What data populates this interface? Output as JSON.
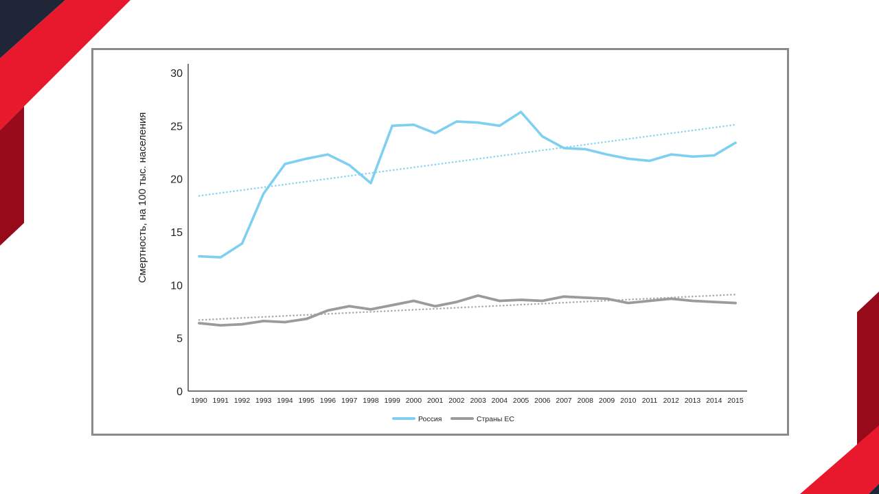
{
  "colors": {
    "navy": "#1f2638",
    "red": "#e8192c",
    "dark_red": "#960a1a",
    "russia": "#7fd0f0",
    "eu": "#9b9b9b"
  },
  "chart_data": {
    "type": "line",
    "ylabel": "Смертность, на 100 тыс. населения",
    "xlabel": "",
    "ylim": [
      0,
      30
    ],
    "yticks": [
      0,
      5,
      10,
      15,
      20,
      25,
      30
    ],
    "categories": [
      "1990",
      "1991",
      "1992",
      "1993",
      "1994",
      "1995",
      "1996",
      "1997",
      "1998",
      "1999",
      "2000",
      "2001",
      "2002",
      "2003",
      "2004",
      "2005",
      "2006",
      "2007",
      "2008",
      "2009",
      "2010",
      "2011",
      "2012",
      "2013",
      "2014",
      "2015"
    ],
    "series": [
      {
        "name": "Россия",
        "values": [
          12.7,
          12.6,
          13.9,
          18.6,
          21.4,
          21.9,
          22.3,
          21.3,
          19.6,
          25.0,
          25.1,
          24.3,
          25.4,
          25.3,
          25.0,
          26.3,
          24.0,
          22.9,
          22.8,
          22.3,
          21.9,
          21.7,
          22.3,
          22.1,
          22.2,
          23.4
        ],
        "trend": [
          18.4,
          25.1
        ]
      },
      {
        "name": "Страны ЕС",
        "values": [
          6.4,
          6.2,
          6.3,
          6.6,
          6.5,
          6.8,
          7.6,
          8.0,
          7.7,
          8.1,
          8.5,
          8.0,
          8.4,
          9.0,
          8.5,
          8.6,
          8.5,
          8.9,
          8.8,
          8.7,
          8.3,
          8.5,
          8.7,
          8.5,
          8.4,
          8.3
        ],
        "trend": [
          6.7,
          9.1
        ]
      }
    ],
    "legend_position": "bottom-center",
    "grid": false
  }
}
